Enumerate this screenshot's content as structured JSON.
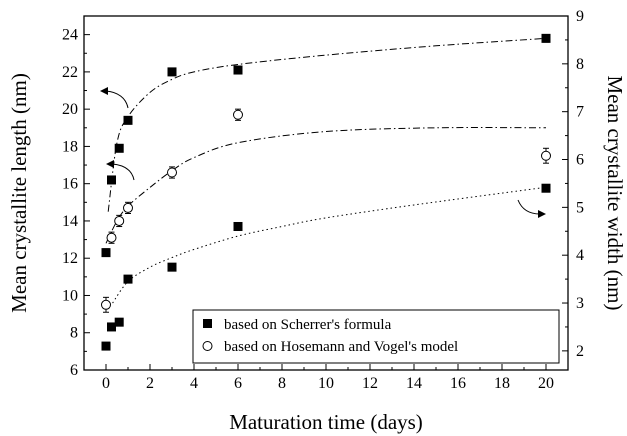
{
  "chart_data": {
    "type": "scatter",
    "xlabel": "Maturation time (days)",
    "ylabel_left": "Mean crystallite length (nm)",
    "ylabel_right": "Mean crystallite width (nm)",
    "xlim": [
      -1,
      21
    ],
    "ylim_left": [
      6,
      25
    ],
    "ylim_right": [
      1.6,
      9
    ],
    "xticks": [
      0,
      2,
      4,
      6,
      8,
      10,
      12,
      14,
      16,
      18,
      20
    ],
    "yticks_left": [
      6,
      8,
      10,
      12,
      14,
      16,
      18,
      20,
      22,
      24
    ],
    "yticks_right": [
      2,
      3,
      4,
      5,
      6,
      7,
      8,
      9
    ],
    "legend_position": "bottom-right",
    "legend": [
      {
        "label": "based on Scherrer's formula",
        "marker": "filled-square"
      },
      {
        "label": "based on Hosemann and Vogel's model",
        "marker": "open-circle"
      }
    ],
    "series": [
      {
        "name": "based on Scherrer's formula",
        "axis": "left",
        "marker": "filled-square",
        "x": [
          0,
          0.25,
          0.6,
          1,
          3,
          6,
          20
        ],
        "y": [
          12.3,
          16.2,
          17.9,
          19.4,
          22.0,
          22.1,
          23.8
        ],
        "err": [
          0.2,
          0.2,
          0.2,
          0.2,
          0.2,
          0.2,
          0.2
        ]
      },
      {
        "name": "based on Hosemann and Vogel's model",
        "axis": "left",
        "marker": "open-circle",
        "x": [
          0,
          0.25,
          0.6,
          1,
          3,
          6,
          20
        ],
        "y": [
          9.5,
          13.1,
          14.0,
          14.7,
          16.6,
          19.7,
          17.5
        ],
        "err": [
          0.4,
          0.3,
          0.3,
          0.3,
          0.3,
          0.3,
          0.4
        ]
      },
      {
        "name": "based on Scherrer's formula",
        "axis": "right",
        "marker": "filled-square",
        "x": [
          0,
          0.25,
          0.6,
          1,
          3,
          6,
          20
        ],
        "y": [
          2.1,
          2.5,
          2.6,
          3.5,
          3.75,
          4.6,
          5.4
        ],
        "err": [
          0.07,
          0.07,
          0.07,
          0.07,
          0.07,
          0.07,
          0.07
        ]
      }
    ],
    "fit_curves": [
      {
        "axis": "left",
        "style": "dash-dot",
        "x": [
          0.1,
          0.5,
          1,
          2,
          3,
          4,
          6,
          10,
          15,
          20
        ],
        "y": [
          14.5,
          18.2,
          19.6,
          20.9,
          21.6,
          22.0,
          22.4,
          22.9,
          23.4,
          23.8
        ]
      },
      {
        "axis": "left",
        "style": "dash-dot",
        "x": [
          0,
          0.5,
          1,
          2,
          3,
          4,
          6,
          10,
          15,
          20
        ],
        "y": [
          12.8,
          14.0,
          14.8,
          15.8,
          16.7,
          17.4,
          18.2,
          18.8,
          19.0,
          19.0
        ]
      },
      {
        "axis": "right",
        "style": "dotted",
        "x": [
          0.3,
          1,
          2,
          3,
          4,
          6,
          8,
          10,
          14,
          20
        ],
        "y": [
          3.0,
          3.45,
          3.75,
          3.95,
          4.12,
          4.4,
          4.6,
          4.78,
          5.05,
          5.42
        ]
      }
    ]
  }
}
